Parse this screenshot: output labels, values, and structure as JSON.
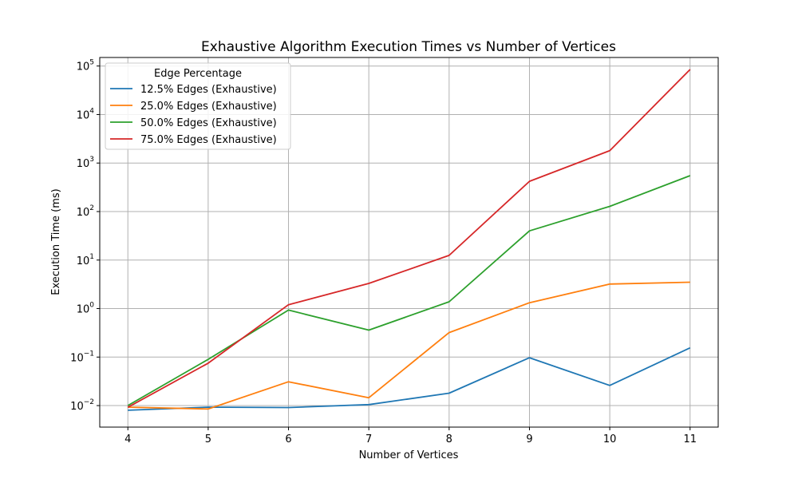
{
  "chart_data": {
    "type": "line",
    "title": "Exhaustive Algorithm Execution Times vs Number of Vertices",
    "xlabel": "Number of Vertices",
    "ylabel": "Execution Time (ms)",
    "yscale": "log",
    "xlim": [
      3.65,
      11.35
    ],
    "ylim": [
      0.0036,
      150000
    ],
    "x_ticks": [
      4,
      5,
      6,
      7,
      8,
      9,
      10,
      11
    ],
    "y_ticks": [
      {
        "value": 0.01,
        "base": "10",
        "exp": "−2"
      },
      {
        "value": 0.1,
        "base": "10",
        "exp": "−1"
      },
      {
        "value": 1,
        "base": "10",
        "exp": "0"
      },
      {
        "value": 10,
        "base": "10",
        "exp": "1"
      },
      {
        "value": 100,
        "base": "10",
        "exp": "2"
      },
      {
        "value": 1000,
        "base": "10",
        "exp": "3"
      },
      {
        "value": 10000,
        "base": "10",
        "exp": "4"
      },
      {
        "value": 100000,
        "base": "10",
        "exp": "5"
      }
    ],
    "grid": true,
    "legend": {
      "title": "Edge Percentage",
      "placement": "top-left"
    },
    "x": [
      4,
      5,
      6,
      7,
      8,
      9,
      10,
      11
    ],
    "series": [
      {
        "name": "12.5% Edges (Exhaustive)",
        "color": "#1f77b4",
        "values": [
          0.008,
          0.0093,
          0.0091,
          0.0105,
          0.018,
          0.097,
          0.026,
          0.155
        ]
      },
      {
        "name": "25.0% Edges (Exhaustive)",
        "color": "#ff7f0e",
        "values": [
          0.0093,
          0.0085,
          0.031,
          0.0145,
          0.32,
          1.32,
          3.2,
          3.5
        ]
      },
      {
        "name": "50.0% Edges (Exhaustive)",
        "color": "#2ca02c",
        "values": [
          0.01,
          0.09,
          0.93,
          0.36,
          1.38,
          40,
          128,
          550
        ]
      },
      {
        "name": "75.0% Edges (Exhaustive)",
        "color": "#d62728",
        "values": [
          0.0092,
          0.075,
          1.2,
          3.3,
          12.5,
          420,
          1800,
          85000
        ]
      }
    ]
  }
}
